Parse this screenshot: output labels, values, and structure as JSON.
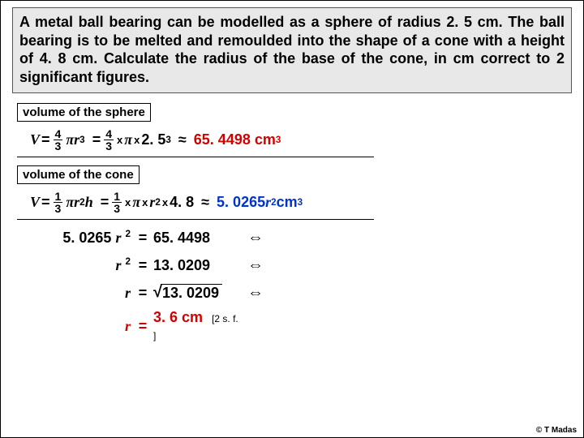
{
  "question": "A metal ball bearing can be modelled as a sphere of radius 2. 5 cm. The ball bearing is to be melted and remoulded into the shape of a cone with a height of 4. 8 cm. Calculate the radius of the base of the cone, in cm correct to 2 significant figures.",
  "section1": "volume of the sphere",
  "sphere": {
    "V": "V",
    "eq": "=",
    "four": "4",
    "three": "3",
    "pi": "π",
    "r": "r",
    "exp3": "3",
    "x": "x",
    "val": "2. 5",
    "approx": "≈",
    "result": "65. 4498 cm",
    "unit_exp": "3"
  },
  "section2": "volume of the cone",
  "cone": {
    "V": "V",
    "eq": "=",
    "one": "1",
    "three": "3",
    "pi": "π",
    "r": "r",
    "exp2": "2",
    "h": "h",
    "x": "x",
    "val_h": "4. 8",
    "approx": "≈",
    "result_pre": "5. 0265",
    "result_post": " cm",
    "unit_exp": "3"
  },
  "solve": {
    "row1_l": "5. 0265",
    "row1_l_var": "r",
    "row1_l_exp": "2",
    "row1_r": "65. 4498",
    "row2_l_var": "r",
    "row2_l_exp": "2",
    "row2_r": "13. 0209",
    "row3_l_var": "r",
    "row3_r": "13. 0209",
    "row4_l_var": "r",
    "row4_r": "3. 6 cm",
    "sf": "[2 s. f. ]",
    "sym": "⇔"
  },
  "credit": "© T Madas",
  "colors": {
    "red": "#d40000",
    "blue": "#0033cc"
  }
}
